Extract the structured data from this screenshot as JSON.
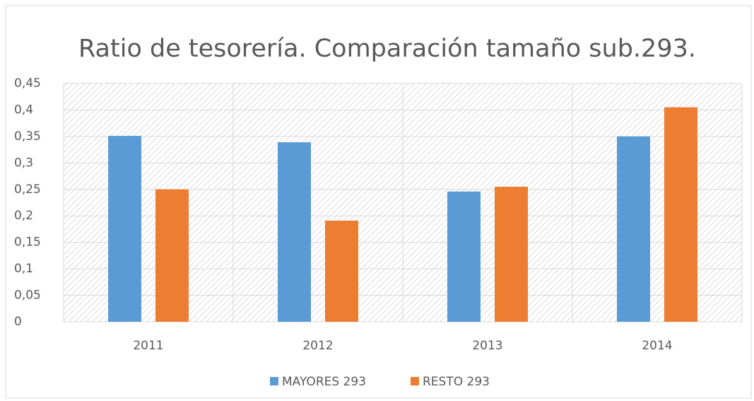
{
  "chart_data": {
    "type": "bar",
    "title": "Ratio de tesorería. Comparación tamaño sub.293.",
    "categories": [
      "2011",
      "2012",
      "2013",
      "2014"
    ],
    "series": [
      {
        "name": "MAYORES 293",
        "color": "#5b9bd5",
        "values": [
          0.351,
          0.339,
          0.246,
          0.35
        ]
      },
      {
        "name": "RESTO 293",
        "color": "#ed7d31",
        "values": [
          0.25,
          0.191,
          0.255,
          0.405
        ]
      }
    ],
    "ylim": [
      0,
      0.45
    ],
    "yticks": [
      0,
      {
        "value": 0.05,
        "label": "0,05"
      },
      {
        "value": 0.1,
        "label": "0,1"
      },
      {
        "value": 0.15,
        "label": "0,15"
      },
      {
        "value": 0.2,
        "label": "0,2"
      },
      {
        "value": 0.25,
        "label": "0,25"
      },
      {
        "value": 0.3,
        "label": "0,3"
      },
      {
        "value": 0.35,
        "label": "0,35"
      },
      {
        "value": 0.4,
        "label": "0,4"
      },
      {
        "value": 0.45,
        "label": "0,45"
      }
    ],
    "grid": true,
    "legend": "bottom"
  }
}
